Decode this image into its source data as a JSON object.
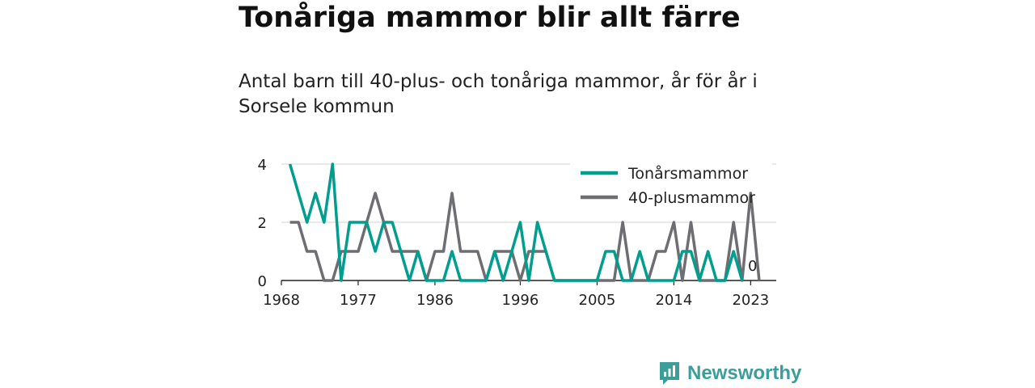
{
  "title": "Tonåriga mammor blir allt färre",
  "subtitle": "Antal barn till 40-plus- och tonåriga mammor, år för år i Sorsele kommun",
  "brand": "Newsworthy",
  "chart_data": {
    "type": "line",
    "x": [
      1969,
      1970,
      1971,
      1972,
      1973,
      1974,
      1975,
      1976,
      1977,
      1978,
      1979,
      1980,
      1981,
      1982,
      1983,
      1984,
      1985,
      1986,
      1987,
      1988,
      1989,
      1990,
      1991,
      1992,
      1993,
      1994,
      1995,
      1996,
      1997,
      1998,
      1999,
      2000,
      2001,
      2002,
      2003,
      2004,
      2005,
      2006,
      2007,
      2008,
      2009,
      2010,
      2011,
      2012,
      2013,
      2014,
      2015,
      2016,
      2017,
      2018,
      2019,
      2020,
      2021,
      2022,
      2023,
      2024
    ],
    "series": [
      {
        "name": "Tonårsmammor",
        "color": "#009e8f",
        "values": [
          4,
          3,
          2,
          3,
          2,
          4,
          0,
          2,
          2,
          2,
          1,
          2,
          2,
          1,
          0,
          1,
          0,
          0,
          0,
          1,
          0,
          0,
          0,
          0,
          1,
          0,
          1,
          2,
          0,
          2,
          1,
          0,
          0,
          0,
          0,
          0,
          0,
          1,
          1,
          0,
          0,
          1,
          0,
          0,
          0,
          0,
          1,
          1,
          0,
          1,
          0,
          0,
          1,
          0,
          null,
          null
        ]
      },
      {
        "name": "40-plusmammor",
        "color": "#6e6d72",
        "values": [
          2,
          2,
          1,
          1,
          0,
          0,
          1,
          1,
          1,
          2,
          3,
          2,
          1,
          1,
          1,
          1,
          0,
          1,
          1,
          3,
          1,
          1,
          1,
          0,
          1,
          1,
          1,
          0,
          1,
          1,
          1,
          0,
          0,
          0,
          0,
          0,
          0,
          0,
          0,
          2,
          0,
          0,
          0,
          1,
          1,
          2,
          0,
          2,
          0,
          0,
          0,
          0,
          2,
          0,
          3,
          0
        ]
      }
    ],
    "xticks": [
      "1968",
      "1977",
      "1986",
      "1996",
      "2005",
      "2014",
      "2023"
    ],
    "yticks": [
      "0",
      "2",
      "4"
    ],
    "ylim": [
      0,
      4
    ],
    "xlim": [
      1968,
      2026
    ],
    "end_labels": [
      "0"
    ],
    "legend_position": "top-right",
    "grid": "horizontal"
  }
}
